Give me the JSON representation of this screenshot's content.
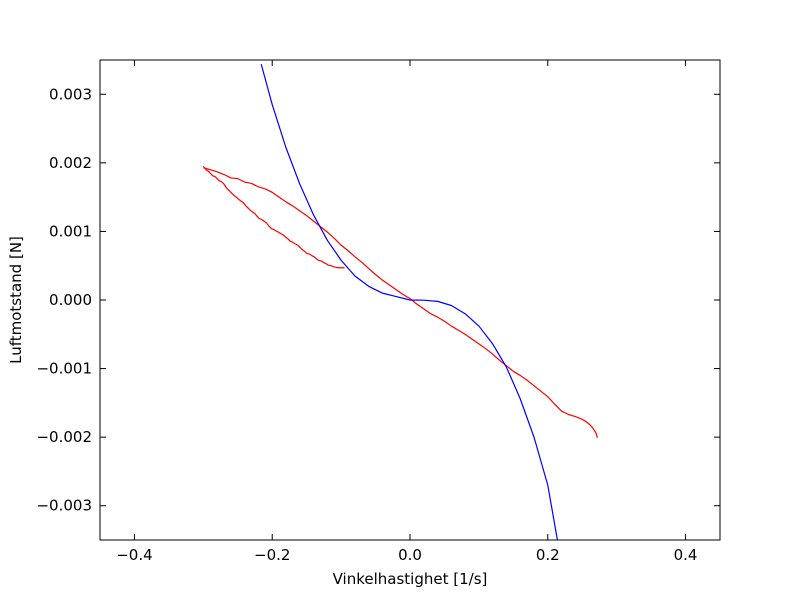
{
  "chart_data": {
    "type": "line",
    "title": "",
    "xlabel": "Vinkelhastighet [1/s]",
    "ylabel": "Luftmotstand [N]",
    "xlim": [
      -0.45,
      0.45
    ],
    "ylim": [
      -0.0035,
      0.0035
    ],
    "grid": false,
    "legend": "none",
    "xticks": [
      -0.4,
      -0.2,
      0.0,
      0.2,
      0.4
    ],
    "xtick_labels": [
      "−0.4",
      "−0.2",
      "0.0",
      "0.2",
      "0.4"
    ],
    "yticks": [
      0.003,
      0.002,
      0.001,
      0.0,
      -0.001,
      -0.002,
      -0.003
    ],
    "ytick_labels": [
      "0.003",
      "0.002",
      "0.001",
      "0.000",
      "−0.001",
      "−0.002",
      "−0.003"
    ],
    "series": [
      {
        "color": "#ff0000",
        "x": [
          -0.3,
          -0.296,
          -0.293,
          -0.29,
          -0.286,
          -0.283,
          -0.279,
          -0.277,
          -0.273,
          -0.27,
          -0.266,
          -0.263,
          -0.259,
          -0.255,
          -0.252,
          -0.249,
          -0.245,
          -0.242,
          -0.238,
          -0.235,
          -0.232,
          -0.228,
          -0.225,
          -0.222,
          -0.219,
          -0.215,
          -0.212,
          -0.208,
          -0.205,
          -0.201,
          -0.198,
          -0.195,
          -0.191,
          -0.188,
          -0.184,
          -0.181,
          -0.177,
          -0.174,
          -0.17,
          -0.167,
          -0.163,
          -0.16,
          -0.157,
          -0.153,
          -0.15,
          -0.146,
          -0.143,
          -0.139,
          -0.136,
          -0.133,
          -0.129,
          -0.126,
          -0.122,
          -0.119,
          -0.115,
          -0.112,
          -0.109,
          -0.105,
          -0.102,
          -0.098,
          -0.095
        ],
        "y": [
          0.00195,
          0.0019,
          0.00188,
          0.00185,
          0.00181,
          0.0018,
          0.00176,
          0.00174,
          0.00172,
          0.00169,
          0.00163,
          0.0016,
          0.00156,
          0.00152,
          0.0015,
          0.00147,
          0.00144,
          0.00142,
          0.00137,
          0.00134,
          0.00131,
          0.00128,
          0.00126,
          0.00122,
          0.00119,
          0.00117,
          0.00115,
          0.00112,
          0.00108,
          0.00104,
          0.00103,
          0.00101,
          0.00099,
          0.00097,
          0.00095,
          0.00092,
          0.00089,
          0.00086,
          0.00084,
          0.00082,
          0.0008,
          0.00077,
          0.00074,
          0.00071,
          0.00068,
          0.00067,
          0.00065,
          0.00063,
          0.0006,
          0.00058,
          0.00057,
          0.00055,
          0.00053,
          0.00051,
          0.0005,
          0.00049,
          0.00048,
          0.00047,
          0.00047,
          0.00047,
          0.00047
        ]
      },
      {
        "color": "#ff0000",
        "x": [
          -0.3,
          -0.29,
          -0.28,
          -0.27,
          -0.26,
          -0.25,
          -0.24,
          -0.23,
          -0.22,
          -0.21,
          -0.2,
          -0.19,
          -0.18,
          -0.17,
          -0.16,
          -0.15,
          -0.14,
          -0.13,
          -0.12,
          -0.11,
          -0.1,
          -0.09,
          -0.08,
          -0.07,
          -0.06,
          -0.05,
          -0.04,
          -0.03,
          -0.02,
          -0.01,
          0.0,
          0.01,
          0.02,
          0.03,
          0.04,
          0.05,
          0.06,
          0.07,
          0.08,
          0.09,
          0.1,
          0.11,
          0.12,
          0.13,
          0.14,
          0.15,
          0.16,
          0.17,
          0.18,
          0.19,
          0.2,
          0.21,
          0.22,
          0.23,
          0.24,
          0.25,
          0.255,
          0.26,
          0.265,
          0.27,
          0.272
        ],
        "y": [
          0.00193,
          0.0019,
          0.00187,
          0.00183,
          0.00178,
          0.00177,
          0.00172,
          0.0017,
          0.00165,
          0.00162,
          0.00157,
          0.0015,
          0.00143,
          0.00137,
          0.0013,
          0.00123,
          0.00115,
          0.00107,
          0.00099,
          0.0009,
          0.0008,
          0.00072,
          0.00063,
          0.00055,
          0.00046,
          0.00037,
          0.00029,
          0.00022,
          0.00015,
          8e-05,
          2e-05,
          -6e-05,
          -0.00013,
          -0.0002,
          -0.00025,
          -0.00031,
          -0.00038,
          -0.00044,
          -0.0005,
          -0.00057,
          -0.00064,
          -0.00071,
          -0.00079,
          -0.00088,
          -0.00096,
          -0.00104,
          -0.0011,
          -0.00117,
          -0.00125,
          -0.00133,
          -0.00141,
          -0.00152,
          -0.00162,
          -0.00167,
          -0.0017,
          -0.00174,
          -0.00177,
          -0.00181,
          -0.00186,
          -0.00194,
          -0.00201
        ]
      },
      {
        "color": "#0000ff",
        "function": "y = -0.377 * x^3 + 0.004 * x^2 (approximate fit)",
        "x": [
          -0.216,
          -0.2,
          -0.18,
          -0.16,
          -0.14,
          -0.12,
          -0.1,
          -0.08,
          -0.06,
          -0.04,
          -0.02,
          0.0,
          0.01,
          0.02,
          0.04,
          0.06,
          0.08,
          0.1,
          0.12,
          0.14,
          0.16,
          0.18,
          0.2,
          0.214
        ],
        "y": [
          0.00344,
          0.00285,
          0.00222,
          0.00169,
          0.00124,
          0.00087,
          0.00058,
          0.00035,
          0.0002,
          0.0001,
          5e-05,
          0.0,
          -2e-06,
          -3e-06,
          -2e-05,
          -8e-05,
          -0.0002,
          -0.00038,
          -0.00064,
          -0.00098,
          -0.00144,
          -0.002,
          -0.0027,
          -0.0035
        ]
      }
    ]
  }
}
